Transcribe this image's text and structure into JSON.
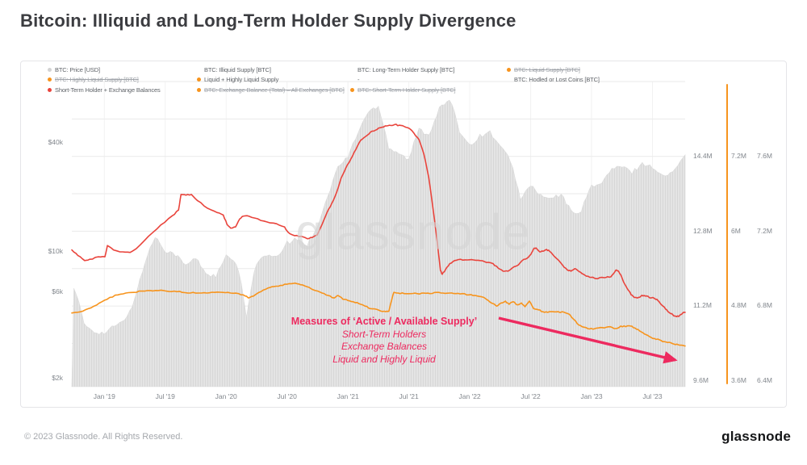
{
  "title": "Bitcoin: Illiquid and Long-Term Holder Supply Divergence",
  "watermark": "glassnode",
  "annotation": {
    "line1": "Measures of ‘Active / Available Supply’",
    "line2": "Short-Term Holders",
    "line3": "Exchange Balances",
    "line4": "Liquid and Highly Liquid"
  },
  "footer": {
    "copyright": "© 2023 Glassnode. All Rights Reserved.",
    "logo": "glassnode"
  },
  "colors": {
    "price_area": "#e4e4e4",
    "price_area_stripe": "#d7d7d7",
    "red_line": "#e9443c",
    "orange_line": "#f7941d",
    "pink_annotation": "#ed2a5f",
    "grid": "#eaeaea",
    "baseline": "#d2d2d2",
    "legend_gray_dot": "#d2d2d2"
  },
  "legend": {
    "columns": [
      [
        {
          "label": "BTC: Price [USD]",
          "dot": "#d2d2d2",
          "struck": false
        },
        {
          "label": "BTC: Highly Liquid Supply [BTC]",
          "dot": "#f7941d",
          "struck": true
        },
        {
          "label": "Short-Term Holder + Exchange Balances",
          "dot": "#e9443c",
          "struck": false
        }
      ],
      [
        {
          "label": "BTC: Illiquid Supply [BTC]",
          "dot": null,
          "struck": false
        },
        {
          "label": "Liquid + Highly Liquid Supply",
          "dot": "#f7941d",
          "struck": false
        },
        {
          "label": "BTC: Exchange Balance (Total) – All Exchanges [BTC]",
          "dot": "#f7941d",
          "struck": true
        }
      ],
      [
        {
          "label": "BTC: Long-Term Holder Supply [BTC]",
          "dot": null,
          "struck": false
        },
        {
          "label": "-",
          "dot": null,
          "struck": false
        },
        {
          "label": "BTC: Short-Term Holder Supply [BTC]",
          "dot": "#f7941d",
          "struck": true
        }
      ],
      [
        {
          "label": "BTC: Liquid Supply [BTC]",
          "dot": "#f7941d",
          "struck": true
        },
        {
          "label": "BTC: Hodled or Lost Coins [BTC]",
          "dot": null,
          "struck": false
        }
      ]
    ]
  },
  "chart_data": {
    "type": "line",
    "title": "Bitcoin: Illiquid and Long-Term Holder Supply Divergence",
    "grid": true,
    "x_axis": {
      "start": "Oct 2018",
      "end": "Oct 2023",
      "ticks": [
        "Jan '19",
        "Jul '19",
        "Jan '20",
        "Jul '20",
        "Jan '21",
        "Jul '21",
        "Jan '22",
        "Jul '22",
        "Jan '23",
        "Jul '23"
      ]
    },
    "y_axes": {
      "price_usd": {
        "scale": "log",
        "ticks": [
          "$40k",
          "$10k",
          "$6k",
          "$2k"
        ],
        "tick_values": [
          40000,
          10000,
          6000,
          2000
        ]
      },
      "right_a": {
        "ticks": [
          "14.4M",
          "12.8M",
          "11.2M",
          "9.6M"
        ],
        "tick_values": [
          14.4,
          12.8,
          11.2,
          9.6
        ],
        "unit": "M BTC"
      },
      "right_b": {
        "ticks": [
          "7.2M",
          "6M",
          "4.8M",
          "3.6M"
        ],
        "tick_values": [
          7.2,
          6.0,
          4.8,
          3.6
        ],
        "unit": "M BTC"
      },
      "right_c": {
        "ticks": [
          "7.6M",
          "7.2M",
          "6.8M",
          "6.4M"
        ],
        "tick_values": [
          7.6,
          7.2,
          6.8,
          6.4
        ],
        "unit": "M BTC"
      }
    },
    "series": [
      {
        "name": "BTC: Price [USD]",
        "type": "area",
        "axis": "price_usd",
        "color": "#e4e4e4",
        "cadence": "monthly",
        "monthly_values": [
          6400,
          3900,
          3600,
          3500,
          3850,
          4100,
          5350,
          8570,
          12000,
          10100,
          9600,
          8300,
          9150,
          7550,
          7200,
          9350,
          8550,
          4300,
          8630,
          9450,
          9140,
          11100,
          11650,
          10780,
          13800,
          19700,
          29000,
          33100,
          45200,
          58900,
          63500,
          37300,
          35000,
          31800,
          47100,
          43800,
          61300,
          68500,
          46200,
          38500,
          43200,
          45500,
          37700,
          31800,
          19000,
          23300,
          20050,
          19400,
          20500,
          16500,
          16550,
          23100,
          23500,
          28500,
          29250,
          27200,
          30470,
          29230,
          25940,
          26970,
          34000
        ]
      },
      {
        "name": "Short-Term Holder + Exchange Balances",
        "type": "line",
        "axis": "right_b",
        "color": "#e9443c",
        "unit": "M BTC",
        "points": [
          [
            0.0,
            5.69
          ],
          [
            0.01,
            5.6
          ],
          [
            0.021,
            5.52
          ],
          [
            0.029,
            5.54
          ],
          [
            0.043,
            5.58
          ],
          [
            0.054,
            5.58
          ],
          [
            0.058,
            5.76
          ],
          [
            0.068,
            5.69
          ],
          [
            0.083,
            5.66
          ],
          [
            0.095,
            5.65
          ],
          [
            0.105,
            5.71
          ],
          [
            0.125,
            5.91
          ],
          [
            0.145,
            6.09
          ],
          [
            0.164,
            6.24
          ],
          [
            0.174,
            6.33
          ],
          [
            0.178,
            6.58
          ],
          [
            0.186,
            6.57
          ],
          [
            0.195,
            6.58
          ],
          [
            0.205,
            6.48
          ],
          [
            0.221,
            6.36
          ],
          [
            0.237,
            6.29
          ],
          [
            0.247,
            6.25
          ],
          [
            0.253,
            6.1
          ],
          [
            0.259,
            6.04
          ],
          [
            0.267,
            6.06
          ],
          [
            0.274,
            6.19
          ],
          [
            0.279,
            6.23
          ],
          [
            0.289,
            6.23
          ],
          [
            0.303,
            6.19
          ],
          [
            0.318,
            6.14
          ],
          [
            0.334,
            6.11
          ],
          [
            0.347,
            6.06
          ],
          [
            0.353,
            5.97
          ],
          [
            0.363,
            5.92
          ],
          [
            0.374,
            5.91
          ],
          [
            0.384,
            5.87
          ],
          [
            0.392,
            5.89
          ],
          [
            0.4,
            5.93
          ],
          [
            0.408,
            6.1
          ],
          [
            0.416,
            6.29
          ],
          [
            0.424,
            6.44
          ],
          [
            0.432,
            6.62
          ],
          [
            0.439,
            6.84
          ],
          [
            0.447,
            7.01
          ],
          [
            0.455,
            7.15
          ],
          [
            0.463,
            7.3
          ],
          [
            0.471,
            7.45
          ],
          [
            0.479,
            7.51
          ],
          [
            0.487,
            7.58
          ],
          [
            0.495,
            7.61
          ],
          [
            0.503,
            7.65
          ],
          [
            0.511,
            7.68
          ],
          [
            0.518,
            7.69
          ],
          [
            0.526,
            7.7
          ],
          [
            0.534,
            7.69
          ],
          [
            0.542,
            7.67
          ],
          [
            0.55,
            7.64
          ],
          [
            0.558,
            7.56
          ],
          [
            0.566,
            7.46
          ],
          [
            0.574,
            7.23
          ],
          [
            0.582,
            6.85
          ],
          [
            0.589,
            6.35
          ],
          [
            0.596,
            5.8
          ],
          [
            0.601,
            5.36
          ],
          [
            0.604,
            5.3
          ],
          [
            0.609,
            5.37
          ],
          [
            0.616,
            5.47
          ],
          [
            0.624,
            5.52
          ],
          [
            0.634,
            5.54
          ],
          [
            0.645,
            5.53
          ],
          [
            0.655,
            5.53
          ],
          [
            0.666,
            5.52
          ],
          [
            0.676,
            5.49
          ],
          [
            0.687,
            5.47
          ],
          [
            0.695,
            5.4
          ],
          [
            0.703,
            5.35
          ],
          [
            0.711,
            5.35
          ],
          [
            0.718,
            5.4
          ],
          [
            0.728,
            5.45
          ],
          [
            0.737,
            5.54
          ],
          [
            0.745,
            5.58
          ],
          [
            0.75,
            5.65
          ],
          [
            0.754,
            5.72
          ],
          [
            0.758,
            5.71
          ],
          [
            0.763,
            5.66
          ],
          [
            0.768,
            5.67
          ],
          [
            0.774,
            5.7
          ],
          [
            0.779,
            5.67
          ],
          [
            0.784,
            5.62
          ],
          [
            0.792,
            5.54
          ],
          [
            0.8,
            5.45
          ],
          [
            0.808,
            5.37
          ],
          [
            0.814,
            5.35
          ],
          [
            0.82,
            5.39
          ],
          [
            0.825,
            5.36
          ],
          [
            0.832,
            5.31
          ],
          [
            0.839,
            5.27
          ],
          [
            0.847,
            5.25
          ],
          [
            0.855,
            5.23
          ],
          [
            0.863,
            5.25
          ],
          [
            0.871,
            5.25
          ],
          [
            0.879,
            5.26
          ],
          [
            0.884,
            5.32
          ],
          [
            0.888,
            5.37
          ],
          [
            0.892,
            5.34
          ],
          [
            0.896,
            5.27
          ],
          [
            0.901,
            5.15
          ],
          [
            0.907,
            5.05
          ],
          [
            0.912,
            4.97
          ],
          [
            0.917,
            4.93
          ],
          [
            0.922,
            4.92
          ],
          [
            0.928,
            4.95
          ],
          [
            0.933,
            4.96
          ],
          [
            0.938,
            4.95
          ],
          [
            0.943,
            4.92
          ],
          [
            0.949,
            4.92
          ],
          [
            0.954,
            4.9
          ],
          [
            0.959,
            4.84
          ],
          [
            0.964,
            4.79
          ],
          [
            0.97,
            4.73
          ],
          [
            0.975,
            4.68
          ],
          [
            0.98,
            4.65
          ],
          [
            0.986,
            4.62
          ],
          [
            0.991,
            4.64
          ],
          [
            0.996,
            4.68
          ],
          [
            1.0,
            4.69
          ]
        ]
      },
      {
        "name": "Liquid + Highly Liquid Supply",
        "type": "line",
        "axis": "right_b",
        "color": "#f7941d",
        "unit": "M BTC",
        "points": [
          [
            0.0,
            4.68
          ],
          [
            0.009,
            4.69
          ],
          [
            0.022,
            4.73
          ],
          [
            0.036,
            4.79
          ],
          [
            0.049,
            4.86
          ],
          [
            0.062,
            4.93
          ],
          [
            0.075,
            4.97
          ],
          [
            0.088,
            5.0
          ],
          [
            0.101,
            5.01
          ],
          [
            0.114,
            5.03
          ],
          [
            0.128,
            5.04
          ],
          [
            0.141,
            5.04
          ],
          [
            0.154,
            5.03
          ],
          [
            0.167,
            5.03
          ],
          [
            0.18,
            5.01
          ],
          [
            0.193,
            5.0
          ],
          [
            0.207,
            5.0
          ],
          [
            0.22,
            5.0
          ],
          [
            0.233,
            5.01
          ],
          [
            0.246,
            5.01
          ],
          [
            0.259,
            5.0
          ],
          [
            0.272,
            4.99
          ],
          [
            0.283,
            4.95
          ],
          [
            0.288,
            4.92
          ],
          [
            0.296,
            4.95
          ],
          [
            0.305,
            5.01
          ],
          [
            0.316,
            5.06
          ],
          [
            0.326,
            5.1
          ],
          [
            0.337,
            5.11
          ],
          [
            0.347,
            5.14
          ],
          [
            0.358,
            5.15
          ],
          [
            0.367,
            5.15
          ],
          [
            0.376,
            5.13
          ],
          [
            0.387,
            5.09
          ],
          [
            0.397,
            5.04
          ],
          [
            0.408,
            5.0
          ],
          [
            0.418,
            4.96
          ],
          [
            0.428,
            4.92
          ],
          [
            0.434,
            4.96
          ],
          [
            0.442,
            4.9
          ],
          [
            0.45,
            4.88
          ],
          [
            0.459,
            4.86
          ],
          [
            0.468,
            4.83
          ],
          [
            0.478,
            4.79
          ],
          [
            0.487,
            4.75
          ],
          [
            0.496,
            4.74
          ],
          [
            0.504,
            4.71
          ],
          [
            0.512,
            4.7
          ],
          [
            0.517,
            4.71
          ],
          [
            0.521,
            4.87
          ],
          [
            0.525,
            5.01
          ],
          [
            0.532,
            5.0
          ],
          [
            0.542,
            4.99
          ],
          [
            0.553,
            4.99
          ],
          [
            0.563,
            4.99
          ],
          [
            0.574,
            5.0
          ],
          [
            0.584,
            4.99
          ],
          [
            0.595,
            5.01
          ],
          [
            0.605,
            5.0
          ],
          [
            0.616,
            5.0
          ],
          [
            0.626,
            4.99
          ],
          [
            0.637,
            4.99
          ],
          [
            0.647,
            4.97
          ],
          [
            0.658,
            4.96
          ],
          [
            0.668,
            4.94
          ],
          [
            0.679,
            4.88
          ],
          [
            0.687,
            4.83
          ],
          [
            0.693,
            4.79
          ],
          [
            0.7,
            4.84
          ],
          [
            0.707,
            4.87
          ],
          [
            0.713,
            4.82
          ],
          [
            0.72,
            4.86
          ],
          [
            0.726,
            4.81
          ],
          [
            0.733,
            4.84
          ],
          [
            0.739,
            4.78
          ],
          [
            0.746,
            4.87
          ],
          [
            0.753,
            4.75
          ],
          [
            0.761,
            4.73
          ],
          [
            0.768,
            4.7
          ],
          [
            0.776,
            4.69
          ],
          [
            0.784,
            4.7
          ],
          [
            0.793,
            4.7
          ],
          [
            0.803,
            4.69
          ],
          [
            0.811,
            4.66
          ],
          [
            0.817,
            4.59
          ],
          [
            0.824,
            4.51
          ],
          [
            0.832,
            4.46
          ],
          [
            0.841,
            4.43
          ],
          [
            0.85,
            4.42
          ],
          [
            0.859,
            4.44
          ],
          [
            0.868,
            4.44
          ],
          [
            0.878,
            4.46
          ],
          [
            0.887,
            4.43
          ],
          [
            0.895,
            4.47
          ],
          [
            0.903,
            4.46
          ],
          [
            0.911,
            4.47
          ],
          [
            0.918,
            4.44
          ],
          [
            0.926,
            4.39
          ],
          [
            0.934,
            4.34
          ],
          [
            0.942,
            4.3
          ],
          [
            0.95,
            4.27
          ],
          [
            0.958,
            4.25
          ],
          [
            0.966,
            4.22
          ],
          [
            0.974,
            4.21
          ],
          [
            0.982,
            4.18
          ],
          [
            0.989,
            4.17
          ],
          [
            0.996,
            4.16
          ],
          [
            1.0,
            4.15
          ]
        ]
      }
    ],
    "annotation_arrow": {
      "direction": "down-right",
      "color": "#ed2a5f"
    }
  }
}
